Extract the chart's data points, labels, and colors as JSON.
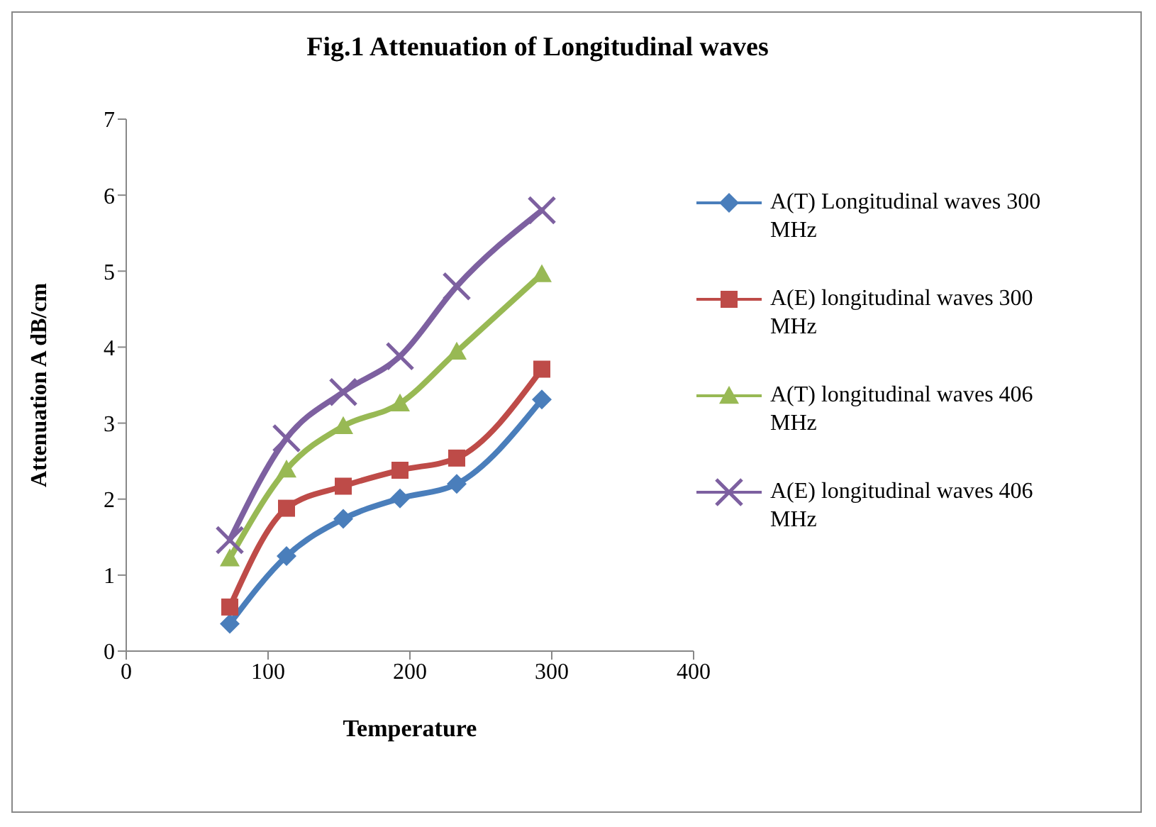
{
  "chart_data": {
    "type": "line",
    "title": "Fig.1 Attenuation of Longitudinal waves",
    "xlabel": "Temperature",
    "ylabel": "Attenuation  A  dB/cm",
    "x": [
      73,
      113,
      153,
      193,
      233,
      293
    ],
    "series": [
      {
        "name": "A(T) Longitudinal waves 300 MHz",
        "color": "#4a7ebb",
        "marker": "diamond",
        "values": [
          0.36,
          1.25,
          1.74,
          2.01,
          2.2,
          3.31
        ]
      },
      {
        "name": "A(E) longitudinal waves 300 MHz",
        "color": "#be4b48",
        "marker": "square",
        "values": [
          0.58,
          1.88,
          2.17,
          2.38,
          2.54,
          3.71
        ]
      },
      {
        "name": "A(T) longitudinal waves 406 MHz",
        "color": "#98b954",
        "marker": "triangle",
        "values": [
          1.22,
          2.39,
          2.96,
          3.26,
          3.94,
          4.96
        ]
      },
      {
        "name": "A(E) longitudinal waves 406 MHz",
        "color": "#7d60a0",
        "marker": "cross",
        "values": [
          1.46,
          2.8,
          3.41,
          3.88,
          4.8,
          5.8
        ]
      }
    ],
    "xlim": [
      0,
      400
    ],
    "xticks": [
      0,
      100,
      200,
      300,
      400
    ],
    "ylim": [
      0,
      7
    ],
    "yticks": [
      0,
      1,
      2,
      3,
      4,
      5,
      6,
      7
    ],
    "grid": false,
    "legend": "right",
    "line_style": "solid"
  }
}
